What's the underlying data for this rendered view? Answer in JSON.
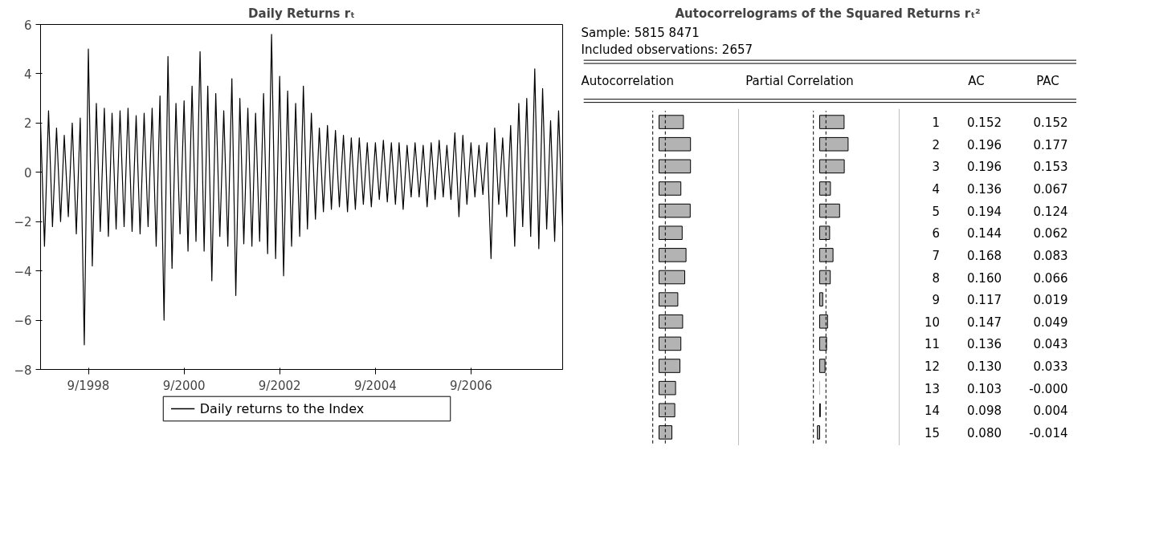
{
  "chart_data": [
    {
      "type": "line",
      "title": "Daily Returns rₜ",
      "x": [
        "1997-09",
        "1997-10",
        "1997-11",
        "1997-12",
        "1998-01",
        "1998-02",
        "1998-03",
        "1998-04",
        "1998-05",
        "1998-06",
        "1998-07",
        "1998-08",
        "1998-09",
        "1998-10",
        "1998-11",
        "1998-12",
        "1999-01",
        "1999-02",
        "1999-03",
        "1999-04",
        "1999-05",
        "1999-06",
        "1999-07",
        "1999-08",
        "1999-09",
        "1999-10",
        "1999-11",
        "1999-12",
        "2000-01",
        "2000-02",
        "2000-03",
        "2000-04",
        "2000-05",
        "2000-06",
        "2000-07",
        "2000-08",
        "2000-09",
        "2000-10",
        "2000-11",
        "2000-12",
        "2001-01",
        "2001-02",
        "2001-03",
        "2001-04",
        "2001-05",
        "2001-06",
        "2001-07",
        "2001-08",
        "2001-09",
        "2001-10",
        "2001-11",
        "2001-12",
        "2002-01",
        "2002-02",
        "2002-03",
        "2002-04",
        "2002-05",
        "2002-06",
        "2002-07",
        "2002-08",
        "2002-09",
        "2002-10",
        "2002-11",
        "2002-12",
        "2003-01",
        "2003-02",
        "2003-03",
        "2003-04",
        "2003-05",
        "2003-06",
        "2003-07",
        "2003-08",
        "2003-09",
        "2003-10",
        "2003-11",
        "2003-12",
        "2004-01",
        "2004-02",
        "2004-03",
        "2004-04",
        "2004-05",
        "2004-06",
        "2004-07",
        "2004-08",
        "2004-09",
        "2004-10",
        "2004-11",
        "2004-12",
        "2005-01",
        "2005-02",
        "2005-03",
        "2005-04",
        "2005-05",
        "2005-06",
        "2005-07",
        "2005-08",
        "2005-09",
        "2005-10",
        "2005-11",
        "2005-12",
        "2006-01",
        "2006-02",
        "2006-03",
        "2006-04",
        "2006-05",
        "2006-06",
        "2006-07",
        "2006-08",
        "2006-09",
        "2006-10",
        "2006-11",
        "2006-12",
        "2007-01",
        "2007-02",
        "2007-03",
        "2007-04",
        "2007-05",
        "2007-06",
        "2007-07",
        "2007-08",
        "2007-09",
        "2007-10",
        "2007-11",
        "2007-12",
        "2008-01",
        "2008-02",
        "2008-03",
        "2008-04",
        "2008-05",
        "2008-06",
        "2008-07",
        "2008-08"
      ],
      "series": [
        {
          "name": "Daily returns to the Index",
          "color": "#000000",
          "values": [
            2.0,
            -3.0,
            2.5,
            -2.2,
            1.8,
            -2.0,
            1.5,
            -1.8,
            2.0,
            -2.5,
            2.2,
            -7.0,
            5.0,
            -3.8,
            2.8,
            -2.4,
            2.6,
            -2.6,
            2.4,
            -2.3,
            2.5,
            -2.2,
            2.6,
            -2.4,
            2.3,
            -2.5,
            2.4,
            -2.2,
            2.6,
            -3.0,
            3.1,
            -6.0,
            4.7,
            -3.9,
            2.8,
            -2.5,
            2.9,
            -3.2,
            3.5,
            -2.8,
            4.9,
            -3.2,
            3.5,
            -4.4,
            3.2,
            -2.6,
            2.5,
            -3.0,
            3.8,
            -5.0,
            3.0,
            -2.9,
            2.6,
            -3.0,
            2.4,
            -2.8,
            3.2,
            -3.3,
            5.6,
            -3.5,
            3.9,
            -4.2,
            3.3,
            -3.0,
            2.8,
            -2.6,
            3.5,
            -2.3,
            2.4,
            -1.9,
            1.8,
            -1.6,
            1.9,
            -1.5,
            1.7,
            -1.4,
            1.5,
            -1.6,
            1.4,
            -1.5,
            1.4,
            -1.3,
            1.2,
            -1.4,
            1.2,
            -1.1,
            1.3,
            -1.2,
            1.2,
            -1.3,
            1.2,
            -1.5,
            1.1,
            -1.0,
            1.2,
            -1.0,
            1.1,
            -1.4,
            1.2,
            -1.1,
            1.3,
            -1.0,
            1.1,
            -1.1,
            1.6,
            -1.8,
            1.5,
            -1.3,
            1.2,
            -1.0,
            1.1,
            -0.9,
            1.2,
            -3.5,
            1.8,
            -1.3,
            1.4,
            -1.8,
            1.9,
            -3.0,
            2.8,
            -2.2,
            3.0,
            -2.6,
            4.2,
            -3.1,
            3.4,
            -2.3,
            2.1,
            -2.8,
            2.5,
            -2.2
          ]
        }
      ],
      "xlim": [
        "1997-09",
        "2008-08"
      ],
      "xticks": [
        {
          "value": "1998-09",
          "label": "9/1998"
        },
        {
          "value": "2000-09",
          "label": "9/2000"
        },
        {
          "value": "2002-09",
          "label": "9/2002"
        },
        {
          "value": "2004-09",
          "label": "9/2004"
        },
        {
          "value": "2006-09",
          "label": "9/2006"
        }
      ],
      "ylim": [
        -8,
        6
      ],
      "yticks": [
        -8,
        -6,
        -4,
        -2,
        0,
        2,
        4,
        6
      ],
      "legend": "bottom"
    },
    {
      "type": "bar",
      "orientation": "horizontal",
      "title": "Autocorrelograms of the Squared Returns rₜ²",
      "annotations": [
        "Sample: 5815 8471",
        "Included observations: 2657"
      ],
      "xlabel": "Autocorrelation",
      "categories": [
        "1",
        "2",
        "3",
        "4",
        "5",
        "6",
        "7",
        "8",
        "9",
        "10",
        "11",
        "12",
        "13",
        "14",
        "15"
      ],
      "tick_labels": false,
      "series": [
        {
          "name": "AC",
          "color": "#b3b3b3",
          "values": [
            0.152,
            0.196,
            0.196,
            0.136,
            0.194,
            0.144,
            0.168,
            0.16,
            0.117,
            0.147,
            0.136,
            0.13,
            0.103,
            0.098,
            0.08
          ],
          "value_labels": [
            "0.152",
            "0.196",
            "0.196",
            "0.136",
            "0.194",
            "0.144",
            "0.168",
            "0.160",
            "0.117",
            "0.147",
            "0.136",
            "0.130",
            "0.103",
            "0.098",
            "0.080"
          ]
        }
      ],
      "ref_lines": [
        {
          "axis": "x",
          "value": -0.039,
          "line_style": "dashed"
        },
        {
          "axis": "x",
          "value": 0.039,
          "line_style": "dashed"
        }
      ]
    },
    {
      "type": "bar",
      "orientation": "horizontal",
      "xlabel": "Partial Correlation",
      "categories": [
        "1",
        "2",
        "3",
        "4",
        "5",
        "6",
        "7",
        "8",
        "9",
        "10",
        "11",
        "12",
        "13",
        "14",
        "15"
      ],
      "tick_labels": "y",
      "series": [
        {
          "name": "PAC",
          "color": "#b3b3b3",
          "values": [
            0.152,
            0.177,
            0.153,
            0.067,
            0.124,
            0.062,
            0.083,
            0.066,
            0.019,
            0.049,
            0.043,
            0.033,
            -0.0,
            0.004,
            -0.014
          ],
          "value_labels": [
            "0.152",
            "0.177",
            "0.153",
            "0.067",
            "0.124",
            "0.062",
            "0.083",
            "0.066",
            "0.019",
            "0.049",
            "0.043",
            "0.033",
            "-0.000",
            "0.004",
            "-0.014"
          ]
        }
      ],
      "ref_lines": [
        {
          "axis": "x",
          "value": -0.039,
          "line_style": "dashed"
        },
        {
          "axis": "x",
          "value": 0.039,
          "line_style": "dashed"
        }
      ]
    }
  ]
}
